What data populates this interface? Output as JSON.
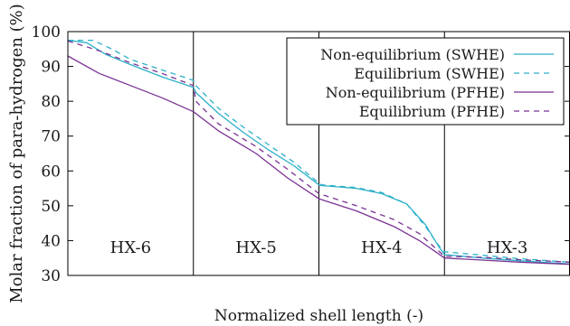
{
  "chart_data": {
    "type": "line",
    "xlabel": "Normalized shell length (-)",
    "ylabel": "Molar fraction of para-hydrogen (%)",
    "xlim": [
      0,
      4
    ],
    "ylim": [
      30,
      100
    ],
    "yticks": [
      30,
      40,
      50,
      60,
      70,
      80,
      90,
      100
    ],
    "grid": false,
    "legend_position": "top-right",
    "regions": [
      {
        "label": "HX-6",
        "x_start": 0,
        "x_end": 1
      },
      {
        "label": "HX-5",
        "x_start": 1,
        "x_end": 2
      },
      {
        "label": "HX-4",
        "x_start": 2,
        "x_end": 3
      },
      {
        "label": "HX-3",
        "x_start": 3,
        "x_end": 4
      }
    ],
    "series": [
      {
        "name": "Non-equilibrium (SWHE)",
        "color": "#2cb0c8",
        "dash": "solid",
        "points": [
          [
            0,
            97.5
          ],
          [
            0.15,
            96.8
          ],
          [
            0.3,
            93.5
          ],
          [
            0.5,
            90.5
          ],
          [
            0.75,
            87.0
          ],
          [
            1.0,
            84.0
          ],
          [
            1.02,
            82.5
          ],
          [
            1.2,
            76.5
          ],
          [
            1.4,
            71.0
          ],
          [
            1.6,
            66.0
          ],
          [
            1.8,
            61.5
          ],
          [
            2.0,
            56.0
          ],
          [
            2.02,
            55.8
          ],
          [
            2.3,
            55.0
          ],
          [
            2.5,
            53.5
          ],
          [
            2.7,
            50.5
          ],
          [
            2.85,
            44.5
          ],
          [
            2.95,
            38.5
          ],
          [
            3.0,
            36.0
          ],
          [
            3.3,
            35.0
          ],
          [
            3.6,
            34.2
          ],
          [
            4.0,
            33.3
          ]
        ]
      },
      {
        "name": "Equilibrium (SWHE)",
        "color": "#2cb0c8",
        "dash": "dashed",
        "points": [
          [
            0,
            97.5
          ],
          [
            0.2,
            97.5
          ],
          [
            0.35,
            95.0
          ],
          [
            0.5,
            92.0
          ],
          [
            0.75,
            89.0
          ],
          [
            1.0,
            86.0
          ],
          [
            1.02,
            84.5
          ],
          [
            1.2,
            78.0
          ],
          [
            1.4,
            72.5
          ],
          [
            1.6,
            67.5
          ],
          [
            1.8,
            62.5
          ],
          [
            2.0,
            56.5
          ],
          [
            2.02,
            56.0
          ],
          [
            2.3,
            55.2
          ],
          [
            2.5,
            53.8
          ],
          [
            2.7,
            50.5
          ],
          [
            2.85,
            44.0
          ],
          [
            2.95,
            38.8
          ],
          [
            3.0,
            36.8
          ],
          [
            3.3,
            35.8
          ],
          [
            3.6,
            34.8
          ],
          [
            4.0,
            33.8
          ]
        ]
      },
      {
        "name": "Non-equilibrium (PFHE)",
        "color": "#7b3294",
        "dash": "solid",
        "points": [
          [
            0,
            93.0
          ],
          [
            0.25,
            88.0
          ],
          [
            0.5,
            84.5
          ],
          [
            0.75,
            81.0
          ],
          [
            1.0,
            77.0
          ],
          [
            1.2,
            71.5
          ],
          [
            1.5,
            65.0
          ],
          [
            1.75,
            58.0
          ],
          [
            2.0,
            52.0
          ],
          [
            2.3,
            48.5
          ],
          [
            2.6,
            44.0
          ],
          [
            2.8,
            40.0
          ],
          [
            3.0,
            35.0
          ],
          [
            3.3,
            34.4
          ],
          [
            3.6,
            33.8
          ],
          [
            4.0,
            33.2
          ]
        ]
      },
      {
        "name": "Equilibrium (PFHE)",
        "color": "#7b3294",
        "dash": "dashed",
        "points": [
          [
            0,
            97.3
          ],
          [
            0.25,
            94.5
          ],
          [
            0.5,
            91.0
          ],
          [
            0.75,
            88.0
          ],
          [
            1.0,
            84.5
          ],
          [
            1.02,
            80.0
          ],
          [
            1.2,
            73.5
          ],
          [
            1.5,
            67.0
          ],
          [
            1.75,
            60.5
          ],
          [
            2.0,
            53.5
          ],
          [
            2.3,
            50.0
          ],
          [
            2.6,
            46.0
          ],
          [
            2.8,
            42.0
          ],
          [
            3.0,
            35.5
          ],
          [
            3.3,
            35.2
          ],
          [
            3.6,
            34.5
          ],
          [
            4.0,
            33.8
          ]
        ]
      }
    ]
  }
}
